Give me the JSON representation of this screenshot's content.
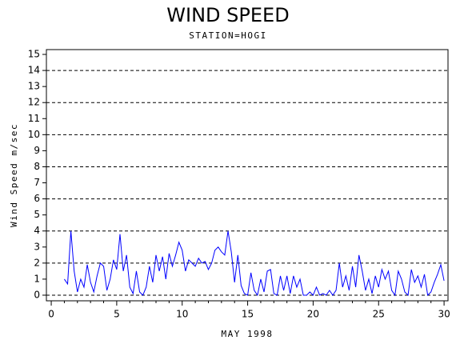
{
  "chart_data": {
    "type": "line",
    "title": "WIND SPEED",
    "subtitle": "STATION=HOGI",
    "y_label": "Wind Speed m/sec",
    "x_label": "MAY 1998",
    "color": "#0000ff",
    "xlim": [
      -0.37,
      30.3
    ],
    "ylim": [
      -0.35,
      15.3
    ],
    "xticks": [
      0,
      5,
      10,
      15,
      20,
      25,
      30
    ],
    "xminorticks": [
      1,
      2,
      3,
      4,
      6,
      7,
      8,
      9,
      11,
      12,
      13,
      14,
      16,
      17,
      18,
      19,
      21,
      22,
      23,
      24,
      26,
      27,
      28,
      29
    ],
    "yticks": [
      0,
      1,
      2,
      3,
      4,
      5,
      6,
      7,
      8,
      9,
      10,
      11,
      12,
      13,
      14,
      15
    ],
    "ygrid": [
      0,
      2,
      4,
      6,
      8,
      10,
      12,
      14
    ],
    "x": [
      1,
      1.25,
      1.5,
      1.75,
      2,
      2.25,
      2.5,
      2.75,
      3,
      3.25,
      3.5,
      3.75,
      4,
      4.25,
      4.5,
      4.75,
      5,
      5.25,
      5.5,
      5.75,
      6,
      6.25,
      6.5,
      6.75,
      7,
      7.25,
      7.5,
      7.75,
      8,
      8.25,
      8.5,
      8.75,
      9,
      9.25,
      9.5,
      9.75,
      10,
      10.25,
      10.5,
      10.75,
      11,
      11.25,
      11.5,
      11.75,
      12,
      12.25,
      12.5,
      12.75,
      13,
      13.25,
      13.5,
      13.75,
      14,
      14.25,
      14.5,
      14.75,
      15,
      15.25,
      15.5,
      15.75,
      16,
      16.25,
      16.5,
      16.75,
      17,
      17.25,
      17.5,
      17.75,
      18,
      18.25,
      18.5,
      18.75,
      19,
      19.25,
      19.5,
      19.75,
      20,
      20.25,
      20.5,
      20.75,
      21,
      21.25,
      21.5,
      21.75,
      22,
      22.25,
      22.5,
      22.75,
      23,
      23.25,
      23.5,
      23.75,
      24,
      24.25,
      24.5,
      24.75,
      25,
      25.25,
      25.5,
      25.75,
      26,
      26.25,
      26.5,
      26.75,
      27,
      27.25,
      27.5,
      27.75,
      28,
      28.25,
      28.5,
      28.75,
      29,
      29.25,
      29.5,
      29.75,
      30
    ],
    "values": [
      1.0,
      0.7,
      4.0,
      1.5,
      0.2,
      1.0,
      0.5,
      1.9,
      0.8,
      0.2,
      1.2,
      2.0,
      1.8,
      0.3,
      1.0,
      2.2,
      1.6,
      3.8,
      1.5,
      2.5,
      0.5,
      0.1,
      1.5,
      0.2,
      0.0,
      0.5,
      1.8,
      0.8,
      2.5,
      1.5,
      2.4,
      1.0,
      2.6,
      1.8,
      2.5,
      3.3,
      2.8,
      1.5,
      2.2,
      2.0,
      1.8,
      2.3,
      2.0,
      2.1,
      1.6,
      2.0,
      2.8,
      3.0,
      2.7,
      2.5,
      4.0,
      2.7,
      0.8,
      2.5,
      0.6,
      0.1,
      0.0,
      1.4,
      0.3,
      0.0,
      1.0,
      0.2,
      1.5,
      1.6,
      0.1,
      0.0,
      1.2,
      0.3,
      1.2,
      0.1,
      1.2,
      0.5,
      1.0,
      0.0,
      0.0,
      0.2,
      0.0,
      0.5,
      0.0,
      0.1,
      0.0,
      0.3,
      0.0,
      0.3,
      2.0,
      0.5,
      1.2,
      0.3,
      1.8,
      0.5,
      2.5,
      1.5,
      0.3,
      1.0,
      0.1,
      1.2,
      0.5,
      1.6,
      1.0,
      1.5,
      0.3,
      0.0,
      1.5,
      1.0,
      0.2,
      0.0,
      1.6,
      0.8,
      1.2,
      0.5,
      1.3,
      0.0,
      0.2,
      0.8,
      1.3,
      1.9,
      0.9
    ]
  }
}
